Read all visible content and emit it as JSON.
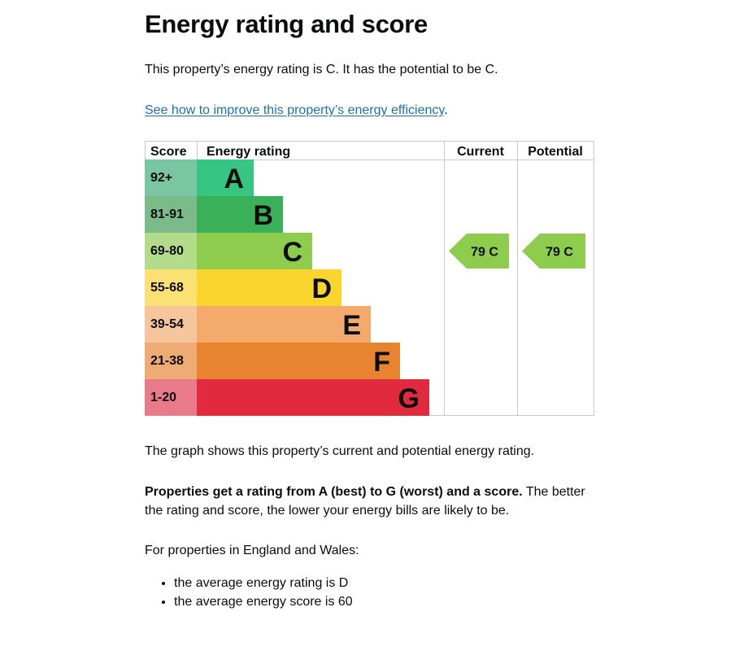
{
  "page": {
    "title": "Energy rating and score",
    "rating_sentence": "This property’s energy rating is C. It has the potential to be C.",
    "improve_link": "See how to improve this property’s energy efficiency",
    "improve_link_suffix": ".",
    "graph_caption": "The graph shows this property’s current and potential energy rating.",
    "properties_bold": "Properties get a rating from A (best) to G (worst) and a score.",
    "properties_rest": " The better the rating and score, the lower your energy bills are likely to be.",
    "region_intro": "For properties in England and Wales:",
    "bullets": [
      "the average energy rating is D",
      "the average energy score is 60"
    ]
  },
  "chart_data": {
    "type": "bar",
    "headers": {
      "score": "Score",
      "rating": "Energy rating",
      "current": "Current",
      "potential": "Potential"
    },
    "bands": [
      {
        "score": "92+",
        "letter": "A",
        "color": "#37c682",
        "score_color": "#7bc6a2"
      },
      {
        "score": "81-91",
        "letter": "B",
        "color": "#3ab059",
        "score_color": "#7bbb8a"
      },
      {
        "score": "69-80",
        "letter": "C",
        "color": "#8dcc4c",
        "score_color": "#b2db8a"
      },
      {
        "score": "55-68",
        "letter": "D",
        "color": "#fad52d",
        "score_color": "#fbe174"
      },
      {
        "score": "39-54",
        "letter": "E",
        "color": "#f4aa6a",
        "score_color": "#f5c59c"
      },
      {
        "score": "21-38",
        "letter": "F",
        "color": "#e88330",
        "score_color": "#eeab74"
      },
      {
        "score": "1-20",
        "letter": "G",
        "color": "#e22a3f",
        "score_color": "#e97a8a"
      }
    ],
    "current": {
      "score": 79,
      "letter": "C",
      "label": "79  C",
      "color": "#8dcc4c"
    },
    "potential": {
      "score": 79,
      "letter": "C",
      "label": "79  C",
      "color": "#8dcc4c"
    }
  }
}
